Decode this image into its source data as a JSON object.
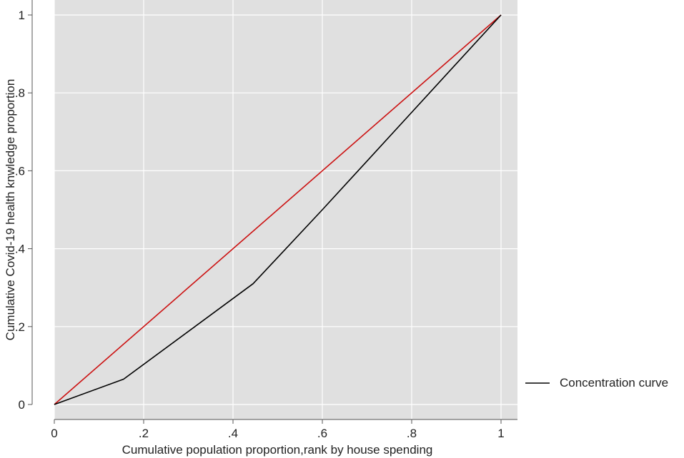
{
  "chart_data": {
    "type": "line",
    "xlabel": "Cumulative population proportion,rank by house spending",
    "ylabel": "Cumulative Covid-19 health knwledge proportion",
    "xlim": [
      0,
      1
    ],
    "ylim": [
      0,
      1
    ],
    "xticks": [
      {
        "value": 0,
        "label": "0"
      },
      {
        "value": 0.2,
        "label": ".2"
      },
      {
        "value": 0.4,
        "label": ".4"
      },
      {
        "value": 0.6,
        "label": ".6"
      },
      {
        "value": 0.8,
        "label": ".8"
      },
      {
        "value": 1,
        "label": "1"
      }
    ],
    "yticks": [
      {
        "value": 0,
        "label": "0"
      },
      {
        "value": 0.2,
        "label": ".2"
      },
      {
        "value": 0.4,
        "label": ".4"
      },
      {
        "value": 0.6,
        "label": ".6"
      },
      {
        "value": 0.8,
        "label": ".8"
      },
      {
        "value": 1,
        "label": "1"
      }
    ],
    "grid": true,
    "legend_position": "right",
    "series": [
      {
        "name": "Concentration curve",
        "color": "#000000",
        "in_legend": true,
        "x": [
          0,
          0.155,
          0.445,
          0.6,
          0.8,
          1.0
        ],
        "y": [
          0,
          0.065,
          0.31,
          0.5,
          0.75,
          1.0
        ]
      },
      {
        "color": "#cc1111",
        "in_legend": false,
        "x": [
          0,
          1
        ],
        "y": [
          0,
          1
        ]
      }
    ],
    "plot_background": "#e0e0e0",
    "grid_color": "#ffffff"
  }
}
